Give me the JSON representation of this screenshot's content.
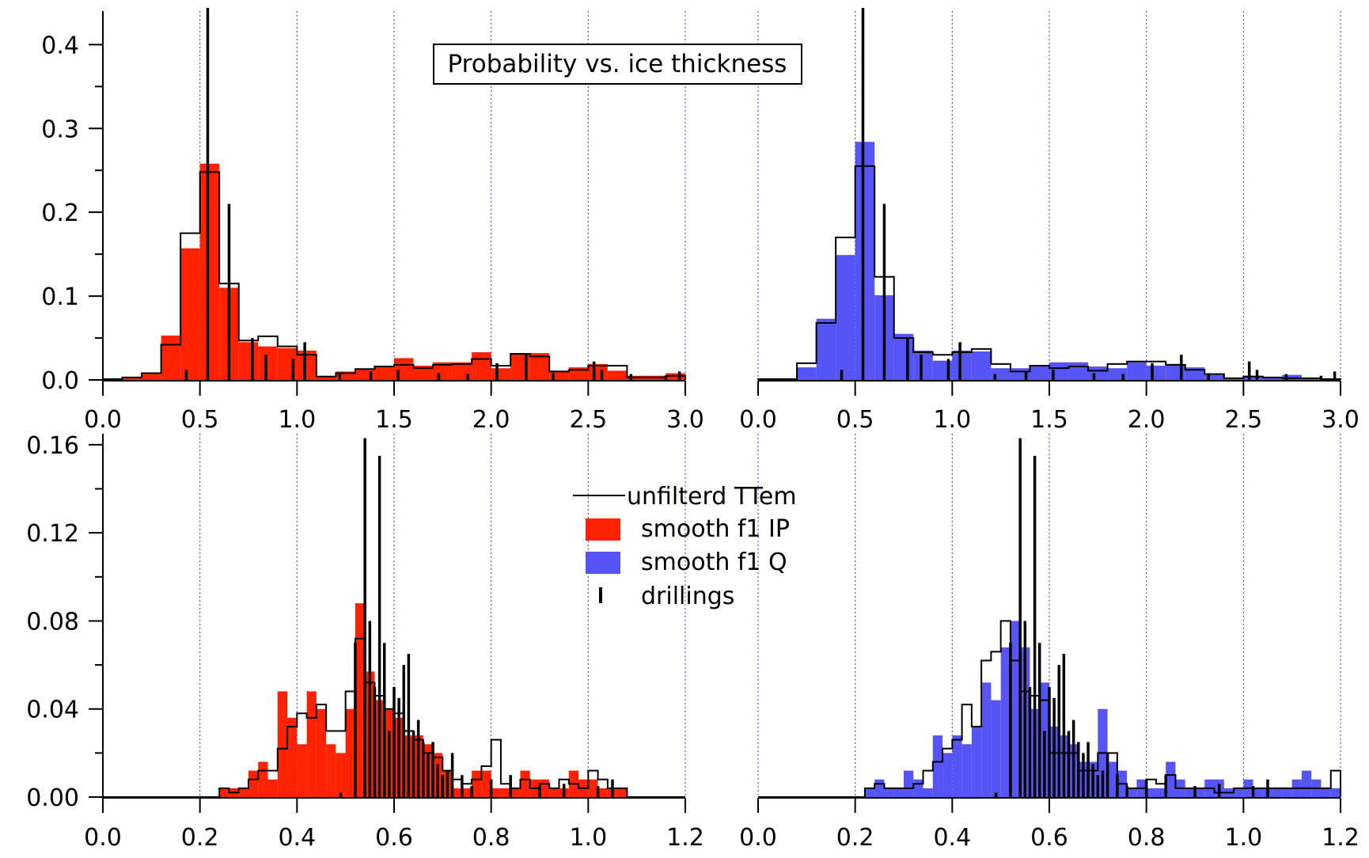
{
  "title": "Probability vs. ice thickness",
  "legend": [
    {
      "key": "ttem",
      "label": "unfilterd TTem",
      "symbol": "line",
      "color": "#000000"
    },
    {
      "key": "ip",
      "label": "smooth f1 IP",
      "symbol": "box",
      "color": "#ff2200"
    },
    {
      "key": "q",
      "label": "smooth f1 Q",
      "symbol": "box",
      "color": "#5555f5"
    },
    {
      "key": "drill",
      "label": "drillings",
      "symbol": "tick",
      "color": "#000000"
    }
  ],
  "colors": {
    "ip": "#ff2200",
    "q": "#5555f5",
    "grid": "#3333dd",
    "outline": "#000000"
  },
  "chart_data": [
    {
      "type": "bar",
      "panel": "top-left",
      "xlim": [
        0.0,
        3.0
      ],
      "ylim": [
        0.0,
        0.44
      ],
      "xticks": [
        "0.0",
        "0.5",
        "1.0",
        "1.5",
        "2.0",
        "2.5",
        "3.0"
      ],
      "yticks": [
        "0.0",
        "0.1",
        "0.2",
        "0.3",
        "0.4"
      ],
      "xgrid": [
        0.5,
        1.0,
        1.5,
        2.0,
        2.5,
        3.0
      ],
      "bin_start": 0.0,
      "bin_width": 0.1,
      "series": [
        {
          "key": "ip",
          "values": [
            0.001,
            0.002,
            0.007,
            0.053,
            0.157,
            0.258,
            0.11,
            0.045,
            0.04,
            0.038,
            0.035,
            0.004,
            0.01,
            0.013,
            0.016,
            0.026,
            0.017,
            0.021,
            0.021,
            0.033,
            0.014,
            0.032,
            0.032,
            0.011,
            0.015,
            0.019,
            0.011,
            0.005,
            0.005,
            0.008
          ]
        },
        {
          "key": "ttem",
          "values": [
            0.001,
            0.003,
            0.008,
            0.042,
            0.175,
            0.248,
            0.115,
            0.047,
            0.052,
            0.04,
            0.03,
            0.004,
            0.008,
            0.013,
            0.016,
            0.018,
            0.014,
            0.018,
            0.019,
            0.025,
            0.017,
            0.031,
            0.028,
            0.01,
            0.012,
            0.017,
            0.017,
            0.003,
            0.003,
            0.005
          ]
        }
      ],
      "drillings": [
        [
          0.43,
          0.012
        ],
        [
          0.54,
          0.44
        ],
        [
          0.65,
          0.21
        ],
        [
          0.77,
          0.05
        ],
        [
          0.84,
          0.03
        ],
        [
          0.98,
          0.025
        ],
        [
          1.04,
          0.045
        ],
        [
          1.22,
          0.007
        ],
        [
          1.38,
          0.01
        ],
        [
          1.52,
          0.012
        ],
        [
          1.73,
          0.008
        ],
        [
          1.88,
          0.007
        ],
        [
          2.03,
          0.02
        ],
        [
          2.18,
          0.03
        ],
        [
          2.32,
          0.008
        ],
        [
          2.53,
          0.022
        ],
        [
          2.57,
          0.012
        ],
        [
          2.72,
          0.007
        ],
        [
          2.9,
          0.005
        ],
        [
          2.97,
          0.01
        ]
      ]
    },
    {
      "type": "bar",
      "panel": "top-right",
      "xlim": [
        0.0,
        3.0
      ],
      "ylim": [
        0.0,
        0.44
      ],
      "xticks": [
        "0.0",
        "0.5",
        "1.0",
        "1.5",
        "2.0",
        "2.5",
        "3.0"
      ],
      "yticks": [],
      "xgrid": [
        0.0,
        0.5,
        1.0,
        1.5,
        2.0,
        2.5,
        3.0
      ],
      "bin_start": 0.0,
      "bin_width": 0.1,
      "series": [
        {
          "key": "q",
          "values": [
            0.001,
            0.001,
            0.015,
            0.073,
            0.149,
            0.284,
            0.101,
            0.055,
            0.035,
            0.023,
            0.035,
            0.034,
            0.014,
            0.014,
            0.017,
            0.021,
            0.021,
            0.016,
            0.014,
            0.021,
            0.017,
            0.019,
            0.015,
            0.006,
            0.001,
            0.005,
            0.003,
            0.006,
            0.001,
            0.001
          ]
        },
        {
          "key": "ttem",
          "values": [
            0.001,
            0.001,
            0.02,
            0.068,
            0.17,
            0.255,
            0.123,
            0.05,
            0.033,
            0.03,
            0.033,
            0.037,
            0.019,
            0.01,
            0.017,
            0.014,
            0.016,
            0.011,
            0.019,
            0.022,
            0.022,
            0.018,
            0.012,
            0.007,
            0.002,
            0.004,
            0.003,
            0.002,
            0.002,
            0.001
          ]
        }
      ],
      "drillings": [
        [
          0.43,
          0.012
        ],
        [
          0.54,
          0.44
        ],
        [
          0.65,
          0.21
        ],
        [
          0.77,
          0.05
        ],
        [
          0.84,
          0.03
        ],
        [
          0.98,
          0.025
        ],
        [
          1.04,
          0.045
        ],
        [
          1.22,
          0.007
        ],
        [
          1.38,
          0.01
        ],
        [
          1.52,
          0.012
        ],
        [
          1.73,
          0.008
        ],
        [
          1.88,
          0.007
        ],
        [
          2.03,
          0.02
        ],
        [
          2.18,
          0.03
        ],
        [
          2.32,
          0.008
        ],
        [
          2.53,
          0.022
        ],
        [
          2.57,
          0.012
        ],
        [
          2.72,
          0.007
        ],
        [
          2.9,
          0.005
        ],
        [
          2.97,
          0.01
        ]
      ]
    },
    {
      "type": "bar",
      "panel": "bottom-left",
      "xlim": [
        0.0,
        1.2
      ],
      "ylim": [
        0.0,
        0.165
      ],
      "xticks": [
        "0.0",
        "0.2",
        "0.4",
        "0.6",
        "0.8",
        "1.0",
        "1.2"
      ],
      "yticks": [
        "0.00",
        "0.04",
        "0.08",
        "0.12",
        "0.16"
      ],
      "xgrid": [
        0.2,
        0.4,
        0.6,
        0.8,
        1.0,
        1.2
      ],
      "bin_start": 0.0,
      "bin_width": 0.02,
      "series": [
        {
          "key": "ip",
          "values": [
            0,
            0,
            0,
            0,
            0,
            0,
            0,
            0,
            0,
            0,
            0,
            0,
            0.004,
            0.004,
            0.004,
            0.012,
            0.016,
            0.008,
            0.048,
            0.036,
            0.024,
            0.048,
            0.04,
            0.024,
            0.02,
            0.04,
            0.088,
            0.057,
            0.044,
            0.04,
            0.036,
            0.028,
            0.028,
            0.024,
            0.02,
            0.012,
            0.004,
            0.004,
            0.012,
            0.012,
            0.004,
            0.004,
            0.004,
            0.012,
            0.008,
            0.008,
            0.004,
            0.004,
            0.012,
            0.008,
            0.008,
            0.004,
            0.004,
            0.004,
            0,
            0,
            0,
            0,
            0,
            0
          ]
        },
        {
          "key": "ttem",
          "values": [
            0,
            0,
            0,
            0,
            0,
            0,
            0,
            0,
            0,
            0,
            0,
            0,
            0.004,
            0.002,
            0.004,
            0.008,
            0.012,
            0.012,
            0.022,
            0.032,
            0.038,
            0.036,
            0.042,
            0.03,
            0.03,
            0.048,
            0.072,
            0.052,
            0.046,
            0.04,
            0.038,
            0.03,
            0.026,
            0.02,
            0.018,
            0.012,
            0.008,
            0.006,
            0.008,
            0.014,
            0.026,
            0.006,
            0.004,
            0.008,
            0.004,
            0.006,
            0.004,
            0.008,
            0.006,
            0.004,
            0.012,
            0.008,
            0.004,
            0.004,
            0,
            0,
            0,
            0,
            0,
            0
          ]
        }
      ],
      "drillings": [
        [
          0.49,
          0.002
        ],
        [
          0.52,
          0.07
        ],
        [
          0.54,
          0.163
        ],
        [
          0.55,
          0.08
        ],
        [
          0.56,
          0.05
        ],
        [
          0.57,
          0.155
        ],
        [
          0.58,
          0.07
        ],
        [
          0.59,
          0.03
        ],
        [
          0.6,
          0.05
        ],
        [
          0.61,
          0.045
        ],
        [
          0.62,
          0.06
        ],
        [
          0.63,
          0.065
        ],
        [
          0.64,
          0.03
        ],
        [
          0.65,
          0.035
        ],
        [
          0.66,
          0.025
        ],
        [
          0.67,
          0.02
        ],
        [
          0.68,
          0.025
        ],
        [
          0.69,
          0.015
        ],
        [
          0.7,
          0.01
        ],
        [
          0.71,
          0.012
        ],
        [
          0.72,
          0.02
        ],
        [
          0.74,
          0.01
        ],
        [
          0.76,
          0.005
        ],
        [
          0.8,
          0.008
        ],
        [
          0.84,
          0.01
        ],
        [
          0.9,
          0.005
        ],
        [
          0.95,
          0.006
        ],
        [
          1.02,
          0.005
        ],
        [
          1.05,
          0.008
        ]
      ]
    },
    {
      "type": "bar",
      "panel": "bottom-right",
      "xlim": [
        0.0,
        1.2
      ],
      "ylim": [
        0.0,
        0.165
      ],
      "xticks": [
        "0.0",
        "0.2",
        "0.4",
        "0.6",
        "0.8",
        "1.0",
        "1.2"
      ],
      "yticks": [],
      "xgrid": [
        0.0,
        0.2,
        0.4,
        0.6,
        0.8,
        1.0,
        1.2
      ],
      "bin_start": 0.0,
      "bin_width": 0.02,
      "series": [
        {
          "key": "q",
          "values": [
            0,
            0,
            0,
            0,
            0,
            0,
            0,
            0,
            0,
            0,
            0,
            0.004,
            0.008,
            0.004,
            0.004,
            0.012,
            0.008,
            0.004,
            0.028,
            0.02,
            0.028,
            0.024,
            0.032,
            0.052,
            0.044,
            0.068,
            0.08,
            0.068,
            0.04,
            0.052,
            0.032,
            0.028,
            0.024,
            0.016,
            0.016,
            0.04,
            0.016,
            0.012,
            0.004,
            0.008,
            0.004,
            0.004,
            0.016,
            0.008,
            0.004,
            0.004,
            0.008,
            0.008,
            0.004,
            0.004,
            0.008,
            0.004,
            0.004,
            0.004,
            0.004,
            0.008,
            0.012,
            0.008,
            0.004,
            0.004
          ]
        },
        {
          "key": "ttem",
          "values": [
            0,
            0,
            0,
            0,
            0,
            0,
            0,
            0,
            0,
            0,
            0,
            0.004,
            0.006,
            0.004,
            0.004,
            0.004,
            0.006,
            0.012,
            0.016,
            0.022,
            0.026,
            0.042,
            0.032,
            0.062,
            0.066,
            0.08,
            0.062,
            0.048,
            0.046,
            0.044,
            0.02,
            0.02,
            0.02,
            0.012,
            0.012,
            0.02,
            0.02,
            0.006,
            0.004,
            0.004,
            0.008,
            0.006,
            0.01,
            0.004,
            0.004,
            0.004,
            0.004,
            0.002,
            0.002,
            0.004,
            0.004,
            0.004,
            0.004,
            0.004,
            0.004,
            0.004,
            0.004,
            0.004,
            0.004,
            0.012
          ]
        }
      ],
      "drillings": [
        [
          0.49,
          0.002
        ],
        [
          0.52,
          0.07
        ],
        [
          0.54,
          0.163
        ],
        [
          0.55,
          0.08
        ],
        [
          0.56,
          0.05
        ],
        [
          0.57,
          0.155
        ],
        [
          0.58,
          0.07
        ],
        [
          0.59,
          0.03
        ],
        [
          0.6,
          0.05
        ],
        [
          0.61,
          0.045
        ],
        [
          0.62,
          0.06
        ],
        [
          0.63,
          0.065
        ],
        [
          0.64,
          0.03
        ],
        [
          0.65,
          0.035
        ],
        [
          0.66,
          0.025
        ],
        [
          0.67,
          0.02
        ],
        [
          0.68,
          0.025
        ],
        [
          0.69,
          0.015
        ],
        [
          0.7,
          0.01
        ],
        [
          0.71,
          0.012
        ],
        [
          0.72,
          0.02
        ],
        [
          0.74,
          0.01
        ],
        [
          0.76,
          0.005
        ],
        [
          0.8,
          0.008
        ],
        [
          0.84,
          0.01
        ],
        [
          0.9,
          0.005
        ],
        [
          0.95,
          0.006
        ],
        [
          1.02,
          0.005
        ],
        [
          1.05,
          0.008
        ]
      ]
    }
  ]
}
